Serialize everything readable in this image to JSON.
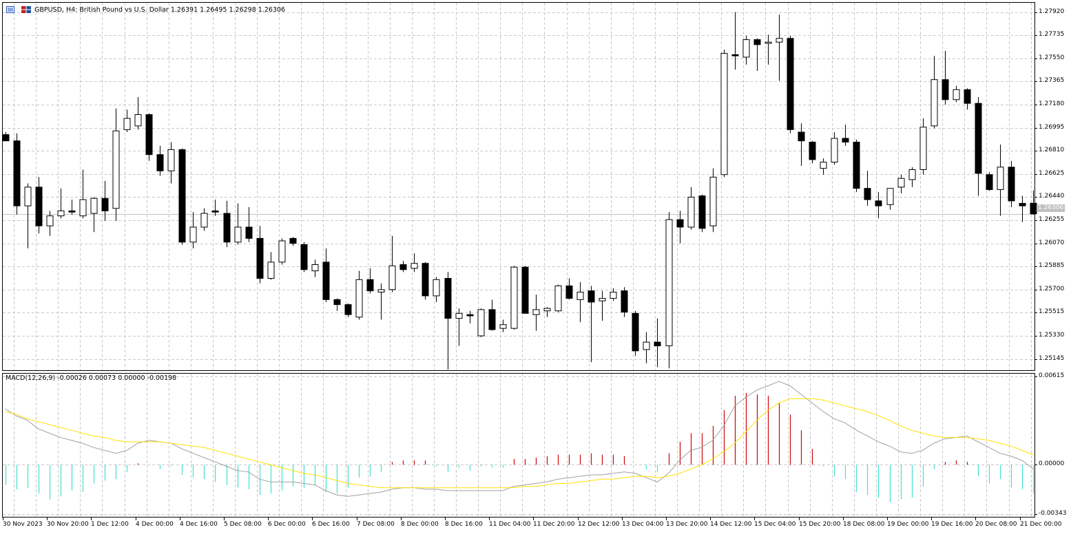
{
  "header": {
    "symbol": "GBPUSD, H4:  British Pound vs U.S. Dollar  1.26391 1.26495 1.26298 1.26306"
  },
  "indicator_header": {
    "text": "MACD(12,26,9) -0.00026 0.00073 0.00000 -0.00198"
  },
  "current_price_label": "1.26306",
  "price_axis_labels": [
    "1.27920",
    "1.27735",
    "1.27550",
    "1.27365",
    "1.27180",
    "1.26995",
    "1.26810",
    "1.26625",
    "1.26440",
    "1.26255",
    "1.26070",
    "1.25885",
    "1.25700",
    "1.25515",
    "1.25330",
    "1.25145"
  ],
  "indicator_axis_labels": [
    "0.00615",
    "0.00000",
    "-0.00343"
  ],
  "time_axis_labels": [
    "30 Nov 2023",
    "30 Nov 20:00",
    "1 Dec 12:00",
    "4 Dec 00:00",
    "4 Dec 16:00",
    "5 Dec 08:00",
    "6 Dec 00:00",
    "6 Dec 16:00",
    "7 Dec 08:00",
    "8 Dec 00:00",
    "8 Dec 16:00",
    "11 Dec 04:00",
    "11 Dec 20:00",
    "12 Dec 12:00",
    "13 Dec 04:00",
    "13 Dec 20:00",
    "14 Dec 12:00",
    "15 Dec 04:00",
    "15 Dec 20:00",
    "18 Dec 08:00",
    "19 Dec 00:00",
    "19 Dec 16:00",
    "20 Dec 08:00",
    "21 Dec 00:00"
  ],
  "colors": {
    "bull_body": "#ffffff",
    "bear_body": "#000000",
    "grid": "#c8c8c8",
    "macd_hist_pos": "#d00000",
    "macd_hist_neg": "#40e0d0",
    "macd_line": "#a0a0a0",
    "signal_line": "#ffe000",
    "price_line": "#c0c0c0"
  },
  "chart_data": [
    {
      "type": "candlestick",
      "title": "GBPUSD, H4",
      "ylim": [
        1.2505,
        1.28
      ],
      "candles": [
        {
          "o": 1.2694,
          "h": 1.2696,
          "l": 1.2689,
          "c": 1.2689
        },
        {
          "o": 1.2689,
          "h": 1.2695,
          "l": 1.263,
          "c": 1.2637
        },
        {
          "o": 1.2637,
          "h": 1.2655,
          "l": 1.2603,
          "c": 1.2652
        },
        {
          "o": 1.2652,
          "h": 1.266,
          "l": 1.2615,
          "c": 1.2621
        },
        {
          "o": 1.2621,
          "h": 1.2633,
          "l": 1.2613,
          "c": 1.2629
        },
        {
          "o": 1.2629,
          "h": 1.2651,
          "l": 1.2627,
          "c": 1.2633
        },
        {
          "o": 1.2633,
          "h": 1.2642,
          "l": 1.263,
          "c": 1.2632
        },
        {
          "o": 1.2629,
          "h": 1.2666,
          "l": 1.2627,
          "c": 1.2642
        },
        {
          "o": 1.2631,
          "h": 1.2644,
          "l": 1.2616,
          "c": 1.2643
        },
        {
          "o": 1.2643,
          "h": 1.2657,
          "l": 1.2625,
          "c": 1.2633
        },
        {
          "o": 1.2635,
          "h": 1.2715,
          "l": 1.2625,
          "c": 1.2697
        },
        {
          "o": 1.2698,
          "h": 1.2714,
          "l": 1.2696,
          "c": 1.2707
        },
        {
          "o": 1.2701,
          "h": 1.2724,
          "l": 1.2698,
          "c": 1.271
        },
        {
          "o": 1.271,
          "h": 1.2711,
          "l": 1.2673,
          "c": 1.2678
        },
        {
          "o": 1.2678,
          "h": 1.2685,
          "l": 1.2661,
          "c": 1.2665
        },
        {
          "o": 1.2665,
          "h": 1.2688,
          "l": 1.2655,
          "c": 1.2682
        },
        {
          "o": 1.2682,
          "h": 1.2683,
          "l": 1.2606,
          "c": 1.2608
        },
        {
          "o": 1.2608,
          "h": 1.2632,
          "l": 1.2603,
          "c": 1.262
        },
        {
          "o": 1.262,
          "h": 1.2635,
          "l": 1.2617,
          "c": 1.2631
        },
        {
          "o": 1.2633,
          "h": 1.2642,
          "l": 1.2629,
          "c": 1.2632
        },
        {
          "o": 1.2631,
          "h": 1.2641,
          "l": 1.2604,
          "c": 1.2608
        },
        {
          "o": 1.2608,
          "h": 1.2639,
          "l": 1.2606,
          "c": 1.262
        },
        {
          "o": 1.262,
          "h": 1.2636,
          "l": 1.2608,
          "c": 1.2611
        },
        {
          "o": 1.2611,
          "h": 1.2621,
          "l": 1.2575,
          "c": 1.2579
        },
        {
          "o": 1.2579,
          "h": 1.26,
          "l": 1.2578,
          "c": 1.2592
        },
        {
          "o": 1.2592,
          "h": 1.2611,
          "l": 1.259,
          "c": 1.2609
        },
        {
          "o": 1.2611,
          "h": 1.2612,
          "l": 1.2605,
          "c": 1.2607
        },
        {
          "o": 1.2606,
          "h": 1.2608,
          "l": 1.2584,
          "c": 1.2586
        },
        {
          "o": 1.2585,
          "h": 1.2594,
          "l": 1.258,
          "c": 1.259
        },
        {
          "o": 1.2592,
          "h": 1.2603,
          "l": 1.256,
          "c": 1.2562
        },
        {
          "o": 1.2562,
          "h": 1.2563,
          "l": 1.2553,
          "c": 1.2558
        },
        {
          "o": 1.2558,
          "h": 1.2559,
          "l": 1.2548,
          "c": 1.255
        },
        {
          "o": 1.2548,
          "h": 1.2585,
          "l": 1.2546,
          "c": 1.2578
        },
        {
          "o": 1.2578,
          "h": 1.2587,
          "l": 1.2567,
          "c": 1.2569
        },
        {
          "o": 1.2568,
          "h": 1.2575,
          "l": 1.2546,
          "c": 1.257
        },
        {
          "o": 1.257,
          "h": 1.2613,
          "l": 1.2568,
          "c": 1.2589
        },
        {
          "o": 1.259,
          "h": 1.2593,
          "l": 1.2584,
          "c": 1.2586
        },
        {
          "o": 1.2587,
          "h": 1.2599,
          "l": 1.2584,
          "c": 1.2591
        },
        {
          "o": 1.2591,
          "h": 1.2592,
          "l": 1.2562,
          "c": 1.2565
        },
        {
          "o": 1.2565,
          "h": 1.258,
          "l": 1.256,
          "c": 1.2578
        },
        {
          "o": 1.2579,
          "h": 1.2584,
          "l": 1.2506,
          "c": 1.2547
        },
        {
          "o": 1.2547,
          "h": 1.2555,
          "l": 1.2525,
          "c": 1.2551
        },
        {
          "o": 1.255,
          "h": 1.2553,
          "l": 1.2543,
          "c": 1.2549
        },
        {
          "o": 1.2533,
          "h": 1.2555,
          "l": 1.2532,
          "c": 1.2554
        },
        {
          "o": 1.2554,
          "h": 1.2562,
          "l": 1.2537,
          "c": 1.2538
        },
        {
          "o": 1.2539,
          "h": 1.2546,
          "l": 1.2536,
          "c": 1.2542
        },
        {
          "o": 1.2539,
          "h": 1.2589,
          "l": 1.2538,
          "c": 1.2588
        },
        {
          "o": 1.2588,
          "h": 1.2589,
          "l": 1.2551,
          "c": 1.2551
        },
        {
          "o": 1.255,
          "h": 1.2566,
          "l": 1.2537,
          "c": 1.2554
        },
        {
          "o": 1.2553,
          "h": 1.2556,
          "l": 1.2548,
          "c": 1.2555
        },
        {
          "o": 1.2553,
          "h": 1.2574,
          "l": 1.2552,
          "c": 1.2573
        },
        {
          "o": 1.2573,
          "h": 1.2579,
          "l": 1.2562,
          "c": 1.2563
        },
        {
          "o": 1.2562,
          "h": 1.2576,
          "l": 1.2544,
          "c": 1.2568
        },
        {
          "o": 1.2569,
          "h": 1.2573,
          "l": 1.2512,
          "c": 1.256
        },
        {
          "o": 1.2561,
          "h": 1.2569,
          "l": 1.2545,
          "c": 1.2563
        },
        {
          "o": 1.2563,
          "h": 1.2571,
          "l": 1.2561,
          "c": 1.2568
        },
        {
          "o": 1.2569,
          "h": 1.2572,
          "l": 1.2548,
          "c": 1.2552
        },
        {
          "o": 1.2551,
          "h": 1.2553,
          "l": 1.2517,
          "c": 1.2521
        },
        {
          "o": 1.2522,
          "h": 1.2536,
          "l": 1.2511,
          "c": 1.2528
        },
        {
          "o": 1.2528,
          "h": 1.2547,
          "l": 1.2508,
          "c": 1.2525
        },
        {
          "o": 1.2525,
          "h": 1.2632,
          "l": 1.2507,
          "c": 1.2626
        },
        {
          "o": 1.2626,
          "h": 1.2633,
          "l": 1.2607,
          "c": 1.262
        },
        {
          "o": 1.262,
          "h": 1.2652,
          "l": 1.2618,
          "c": 1.2644
        },
        {
          "o": 1.2645,
          "h": 1.2646,
          "l": 1.2616,
          "c": 1.2619
        },
        {
          "o": 1.2621,
          "h": 1.2667,
          "l": 1.2616,
          "c": 1.266
        },
        {
          "o": 1.2662,
          "h": 1.2762,
          "l": 1.266,
          "c": 1.2759
        },
        {
          "o": 1.2758,
          "h": 1.2792,
          "l": 1.2746,
          "c": 1.2757
        },
        {
          "o": 1.2756,
          "h": 1.2773,
          "l": 1.275,
          "c": 1.277
        },
        {
          "o": 1.277,
          "h": 1.2771,
          "l": 1.2745,
          "c": 1.2766
        },
        {
          "o": 1.2767,
          "h": 1.2774,
          "l": 1.275,
          "c": 1.2768
        },
        {
          "o": 1.2768,
          "h": 1.279,
          "l": 1.2737,
          "c": 1.2771
        },
        {
          "o": 1.2771,
          "h": 1.2773,
          "l": 1.2695,
          "c": 1.2698
        },
        {
          "o": 1.2696,
          "h": 1.2703,
          "l": 1.2669,
          "c": 1.2689
        },
        {
          "o": 1.2688,
          "h": 1.2689,
          "l": 1.2671,
          "c": 1.2674
        },
        {
          "o": 1.2667,
          "h": 1.2675,
          "l": 1.2662,
          "c": 1.2672
        },
        {
          "o": 1.2672,
          "h": 1.2696,
          "l": 1.267,
          "c": 1.2691
        },
        {
          "o": 1.2691,
          "h": 1.2702,
          "l": 1.2685,
          "c": 1.2688
        },
        {
          "o": 1.2688,
          "h": 1.269,
          "l": 1.2648,
          "c": 1.2651
        },
        {
          "o": 1.2651,
          "h": 1.2665,
          "l": 1.2637,
          "c": 1.2642
        },
        {
          "o": 1.2641,
          "h": 1.2648,
          "l": 1.2627,
          "c": 1.2637
        },
        {
          "o": 1.2638,
          "h": 1.2651,
          "l": 1.2634,
          "c": 1.2651
        },
        {
          "o": 1.2652,
          "h": 1.2662,
          "l": 1.2647,
          "c": 1.2659
        },
        {
          "o": 1.2658,
          "h": 1.2668,
          "l": 1.2652,
          "c": 1.2666
        },
        {
          "o": 1.2666,
          "h": 1.2707,
          "l": 1.2662,
          "c": 1.27
        },
        {
          "o": 1.2701,
          "h": 1.2757,
          "l": 1.2699,
          "c": 1.2738
        },
        {
          "o": 1.2738,
          "h": 1.2761,
          "l": 1.2718,
          "c": 1.2722
        },
        {
          "o": 1.2722,
          "h": 1.2733,
          "l": 1.272,
          "c": 1.273
        },
        {
          "o": 1.273,
          "h": 1.2731,
          "l": 1.2714,
          "c": 1.2719
        },
        {
          "o": 1.2719,
          "h": 1.2724,
          "l": 1.2645,
          "c": 1.2663
        },
        {
          "o": 1.2662,
          "h": 1.2664,
          "l": 1.2649,
          "c": 1.265
        },
        {
          "o": 1.265,
          "h": 1.2686,
          "l": 1.2629,
          "c": 1.2668
        },
        {
          "o": 1.2668,
          "h": 1.2673,
          "l": 1.2636,
          "c": 1.2641
        },
        {
          "o": 1.2639,
          "h": 1.2645,
          "l": 1.2624,
          "c": 1.2637
        },
        {
          "o": 1.26391,
          "h": 1.26495,
          "l": 1.26298,
          "c": 1.26306
        }
      ]
    },
    {
      "type": "bar",
      "title": "MACD(12,26,9)",
      "ylim": [
        -0.00343,
        0.00615
      ],
      "histogram": [
        -0.0014,
        -0.0017,
        -0.0016,
        -0.002,
        -0.0024,
        -0.0022,
        -0.0018,
        -0.0019,
        -0.0013,
        -0.0011,
        -0.001,
        -0.0005,
        0.0001,
        0.0,
        -0.0003,
        -0.0001,
        -0.0007,
        -0.0009,
        -0.001,
        -0.0012,
        -0.0014,
        -0.0016,
        -0.0017,
        -0.0021,
        -0.002,
        -0.0018,
        -0.0015,
        -0.0016,
        -0.0014,
        -0.0019,
        -0.002,
        -0.0016,
        -0.0009,
        -0.0008,
        -0.0005,
        0.0002,
        0.0003,
        0.0003,
        0.0003,
        -0.0001,
        -0.0005,
        -0.0002,
        -0.0004,
        -0.0001,
        -0.0002,
        -0.0002,
        0.0004,
        0.0004,
        0.0005,
        0.0006,
        0.0007,
        0.0007,
        0.0007,
        0.0008,
        0.0007,
        0.0007,
        0.0006,
        0.0,
        -0.0003,
        -0.0005,
        0.0008,
        0.0016,
        0.0022,
        0.0022,
        0.0027,
        0.0038,
        0.0048,
        0.005,
        0.0049,
        0.0048,
        0.0043,
        0.0035,
        0.0024,
        0.0011,
        -0.0001,
        -0.0008,
        -0.001,
        -0.0019,
        -0.0021,
        -0.0023,
        -0.0026,
        -0.0024,
        -0.0023,
        -0.0015,
        -0.0003,
        0.0002,
        0.0003,
        0.0002,
        -0.0008,
        -0.0013,
        -0.001,
        -0.0016,
        -0.0017,
        -0.002
      ],
      "macd": [
        0.0039,
        0.0034,
        0.0031,
        0.0025,
        0.0022,
        0.0019,
        0.0017,
        0.0015,
        0.0012,
        0.001,
        0.0008,
        0.001,
        0.0015,
        0.0017,
        0.0016,
        0.0015,
        0.0011,
        0.0008,
        0.0005,
        0.0002,
        -0.0001,
        -0.0004,
        -0.0005,
        -0.001,
        -0.0012,
        -0.0012,
        -0.0012,
        -0.0013,
        -0.0014,
        -0.0018,
        -0.0021,
        -0.0022,
        -0.0021,
        -0.002,
        -0.0019,
        -0.0017,
        -0.0016,
        -0.0016,
        -0.0017,
        -0.0017,
        -0.0018,
        -0.0018,
        -0.0018,
        -0.0018,
        -0.0018,
        -0.0018,
        -0.0015,
        -0.0014,
        -0.0013,
        -0.0012,
        -0.001,
        -0.0009,
        -0.0008,
        -0.0007,
        -0.0007,
        -0.0006,
        -0.0005,
        -0.0006,
        -0.0009,
        -0.0012,
        -0.0006,
        0.0003,
        0.001,
        0.0012,
        0.0017,
        0.0027,
        0.0041,
        0.0047,
        0.0052,
        0.0055,
        0.0058,
        0.0055,
        0.0049,
        0.0043,
        0.0037,
        0.0032,
        0.0029,
        0.0024,
        0.002,
        0.0016,
        0.0013,
        0.0009,
        0.0008,
        0.001,
        0.0015,
        0.0018,
        0.0019,
        0.002,
        0.0016,
        0.0012,
        0.0008,
        0.0006,
        0.0003,
        -0.0003
      ],
      "signal": [
        0.0037,
        0.0035,
        0.0032,
        0.003,
        0.0028,
        0.0026,
        0.0024,
        0.0022,
        0.002,
        0.0019,
        0.0017,
        0.0016,
        0.0016,
        0.0016,
        0.0016,
        0.0015,
        0.0014,
        0.0013,
        0.0012,
        0.001,
        0.0008,
        0.0006,
        0.0004,
        0.0002,
        0.0,
        -0.0002,
        -0.0004,
        -0.0006,
        -0.0007,
        -0.0009,
        -0.0011,
        -0.0013,
        -0.0014,
        -0.0015,
        -0.0016,
        -0.0016,
        -0.0016,
        -0.0016,
        -0.0016,
        -0.0016,
        -0.0016,
        -0.0016,
        -0.0016,
        -0.0016,
        -0.0016,
        -0.0016,
        -0.0016,
        -0.0015,
        -0.0015,
        -0.0014,
        -0.0013,
        -0.0013,
        -0.0012,
        -0.0011,
        -0.001,
        -0.001,
        -0.0009,
        -0.0008,
        -0.0008,
        -0.0009,
        -0.0008,
        -0.0006,
        -0.0003,
        -0.0,
        0.0004,
        0.0009,
        0.0015,
        0.0023,
        0.0031,
        0.0038,
        0.0043,
        0.0046,
        0.0046,
        0.0046,
        0.0045,
        0.0043,
        0.0041,
        0.0039,
        0.0037,
        0.0034,
        0.0031,
        0.0027,
        0.0024,
        0.0022,
        0.002,
        0.0019,
        0.0019,
        0.0019,
        0.0018,
        0.0017,
        0.0015,
        0.0013,
        0.001,
        0.0007
      ]
    }
  ]
}
